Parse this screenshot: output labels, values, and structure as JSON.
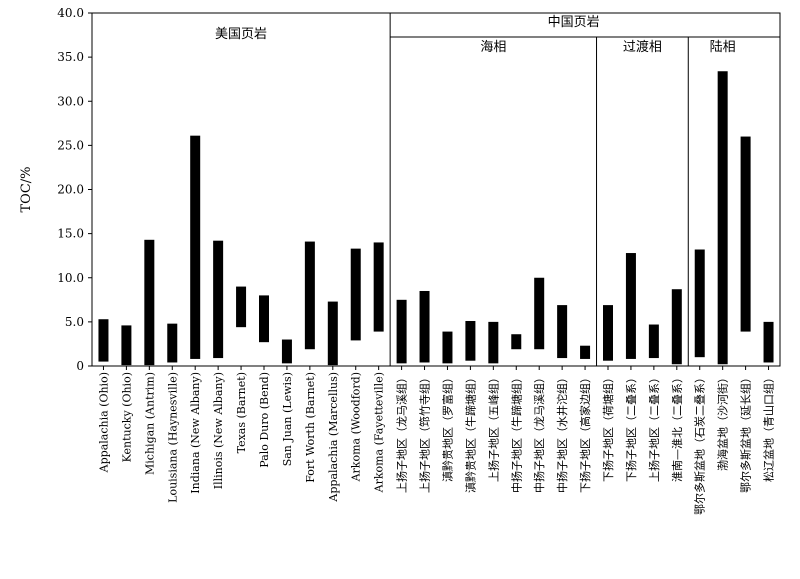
{
  "chart_data": {
    "type": "bar",
    "title": "",
    "xlabel": "",
    "ylabel": "TOC/%",
    "ylim": [
      0,
      40
    ],
    "yticks": [
      "0",
      "5.0",
      "10.0",
      "15.0",
      "20.0",
      "25.0",
      "30.0",
      "35.0",
      "40.0"
    ],
    "grid": false,
    "groups": [
      {
        "label": "美国页岩",
        "start": 0,
        "end": 13
      },
      {
        "label": "中国页岩",
        "start": 13,
        "end": 29
      },
      {
        "label": "海相",
        "start": 13,
        "end": 22
      },
      {
        "label": "过渡相",
        "start": 22,
        "end": 26
      },
      {
        "label": "陆相",
        "start": 26,
        "end": 29
      }
    ],
    "categories": [
      "Appalachia (Ohio)",
      "Kentucky (Ohio)",
      "Michigan (Antrim)",
      "Louisiana (Haynesville)",
      "Indiana (New Albany)",
      "Illinois (New Albany)",
      "Texas (Barnet)",
      "Palo Duro (Bend)",
      "San Juan (Lewis)",
      "Fort Worth (Barnet)",
      "Appalachia (Marcellus)",
      "Arkoma (Woodford)",
      "Arkoma (Fayetteville)",
      "上扬子地区（龙马溪组）",
      "上扬子地区（筇竹寺组）",
      "滇黔贵地区（罗富组）",
      "滇黔贵地区（牛蹄塘组）",
      "上扬子地区（五峰组）",
      "中扬子地区（牛蹄塘组）",
      "中扬子地区（龙马溪组）",
      "中扬子地区（水井沱组）",
      "下扬子地区（高家边组）",
      "下扬子地区（荷塘组）",
      "下扬子地区（二叠系）",
      "上扬子地区（二叠系）",
      "淮南—淮北（二叠系）",
      "鄂尔多斯盆地（石炭二叠系）",
      "渤海盆地（沙河街）",
      "鄂尔多斯盆地（延长组）",
      "松辽盆地（青山口组）"
    ],
    "ranges": [
      [
        0.5,
        5.3
      ],
      [
        0.1,
        4.6
      ],
      [
        0.1,
        14.3
      ],
      [
        0.4,
        4.8
      ],
      [
        0.8,
        26.1
      ],
      [
        0.9,
        14.2
      ],
      [
        4.4,
        9.0
      ],
      [
        2.7,
        8.0
      ],
      [
        0.3,
        3.0
      ],
      [
        1.9,
        14.1
      ],
      [
        0.1,
        7.3
      ],
      [
        2.9,
        13.3
      ],
      [
        3.9,
        14.0
      ],
      [
        0.3,
        7.5
      ],
      [
        0.4,
        8.5
      ],
      [
        0.3,
        3.9
      ],
      [
        0.6,
        5.1
      ],
      [
        0.3,
        5.0
      ],
      [
        1.9,
        3.6
      ],
      [
        1.9,
        10.0
      ],
      [
        0.9,
        6.9
      ],
      [
        0.8,
        2.3
      ],
      [
        0.6,
        6.9
      ],
      [
        0.8,
        12.8
      ],
      [
        0.9,
        4.7
      ],
      [
        0.2,
        8.7
      ],
      [
        1.0,
        13.2
      ],
      [
        0.2,
        33.4
      ],
      [
        3.9,
        26.0
      ],
      [
        0.4,
        5.0
      ]
    ]
  }
}
